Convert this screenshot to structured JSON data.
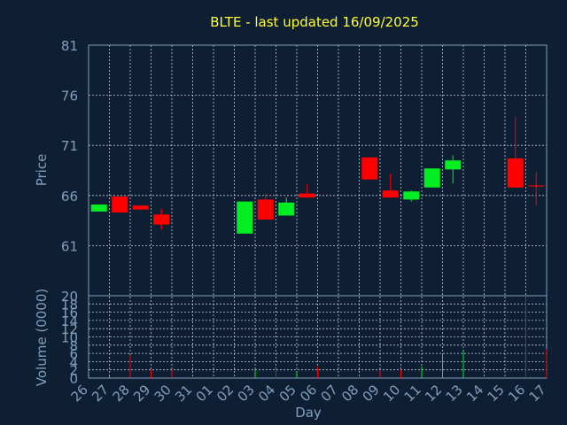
{
  "chart_data": {
    "type": "candlestick",
    "title": "BLTE - last updated 16/09/2025",
    "xlabel": "Day",
    "ylabel_price": "Price",
    "ylabel_volume": "Volume (0000)",
    "x_ticks": [
      "26",
      "27",
      "28",
      "29",
      "30",
      "31",
      "01",
      "02",
      "03",
      "04",
      "05",
      "06",
      "07",
      "08",
      "09",
      "10",
      "11",
      "12",
      "13",
      "14",
      "15",
      "16",
      "17"
    ],
    "price_ticks": [
      61,
      66,
      71,
      76,
      81
    ],
    "price_range": [
      56,
      81
    ],
    "volume_ticks": [
      0,
      2,
      4,
      6,
      8,
      10,
      12,
      14,
      16,
      18,
      20
    ],
    "volume_range": [
      0,
      20
    ],
    "up_color": "#00ee22",
    "down_color": "#ff0000",
    "candles": [
      {
        "day": 0,
        "open": 64.4,
        "close": 65.1,
        "high": 65.1,
        "low": 64.4,
        "volume": 0.6
      },
      {
        "day": 1,
        "open": 65.9,
        "close": 64.3,
        "high": 65.9,
        "low": 64.3,
        "volume": 5.5
      },
      {
        "day": 2,
        "open": 65.0,
        "close": 64.6,
        "high": 65.0,
        "low": 64.6,
        "volume": 2.0
      },
      {
        "day": 3,
        "open": 64.1,
        "close": 63.1,
        "high": 64.7,
        "low": 62.6,
        "volume": 2.0
      },
      {
        "day": 7,
        "open": 62.2,
        "close": 65.4,
        "high": 65.4,
        "low": 62.2,
        "volume": 2.0
      },
      {
        "day": 8,
        "open": 65.6,
        "close": 63.6,
        "high": 66.2,
        "low": 63.6,
        "volume": 2.3
      },
      {
        "day": 9,
        "open": 64.0,
        "close": 65.3,
        "high": 65.8,
        "low": 64.0,
        "volume": 1.5
      },
      {
        "day": 10,
        "open": 66.2,
        "close": 65.8,
        "high": 67.1,
        "low": 65.8,
        "volume": 2.7
      },
      {
        "day": 13,
        "open": 69.8,
        "close": 67.6,
        "high": 69.8,
        "low": 67.6,
        "volume": 1.8
      },
      {
        "day": 14,
        "open": 66.5,
        "close": 65.8,
        "high": 68.2,
        "low": 65.8,
        "volume": 2.0
      },
      {
        "day": 15,
        "open": 65.6,
        "close": 66.4,
        "high": 66.5,
        "low": 65.4,
        "volume": 2.8
      },
      {
        "day": 16,
        "open": 66.8,
        "close": 68.7,
        "high": 68.7,
        "low": 66.8,
        "volume": 5.5
      },
      {
        "day": 17,
        "open": 68.6,
        "close": 69.5,
        "high": 70.0,
        "low": 67.2,
        "volume": 6.6
      },
      {
        "day": 20,
        "open": 69.7,
        "close": 66.8,
        "high": 73.8,
        "low": 66.8,
        "volume": 20.0
      },
      {
        "day": 21,
        "open": 67.0,
        "close": 66.9,
        "high": 68.3,
        "low": 65.0,
        "volume": 7.0
      }
    ]
  }
}
